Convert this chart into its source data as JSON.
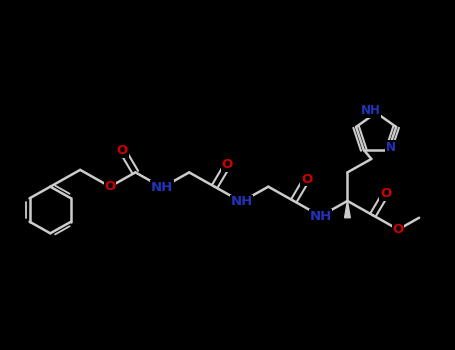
{
  "bg_color": "#000000",
  "bond_color": "#cccccc",
  "N_color": "#2233bb",
  "O_color": "#cc0000",
  "lw": 1.8,
  "fs": 9.5,
  "xlim": [
    0,
    9.5
  ],
  "ylim": [
    0,
    7.5
  ]
}
